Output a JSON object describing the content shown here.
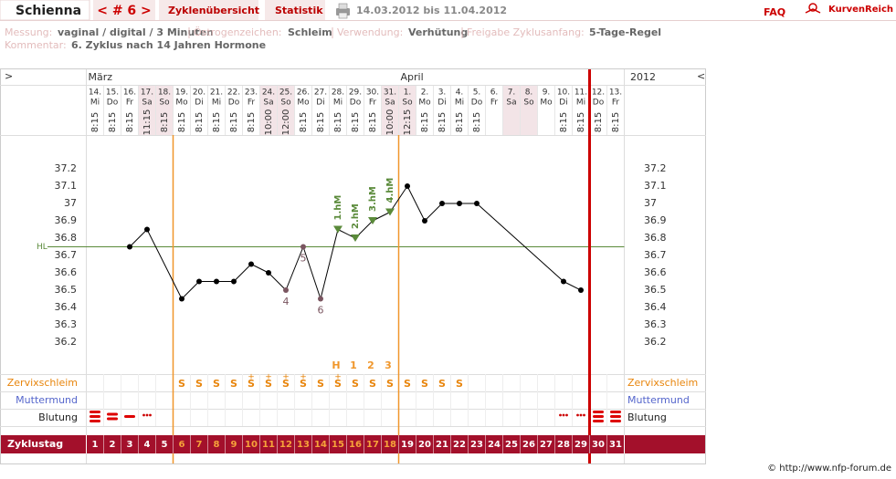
{
  "header": {
    "name": "Schienna",
    "cycle": "< # 6 >",
    "tabs": [
      "Zyklenübersicht",
      "Statistik"
    ],
    "period": "14.03.2012 bis 11.04.2012",
    "faq": "FAQ",
    "logo": "KurvenReich"
  },
  "info": {
    "fields": [
      {
        "label": "Messung:",
        "value": "vaginal / digital / 3 Minuten"
      },
      {
        "label": "Östrogenzeichen:",
        "value": "Schleim"
      },
      {
        "label": "Verwendung:",
        "value": "Verhütung"
      },
      {
        "label": "Freigabe Zyklusanfang:",
        "value": "5-Tage-Regel"
      }
    ],
    "comment": {
      "label": "Kommentar:",
      "value": "6. Zyklus nach 14 Jahren Hormone"
    }
  },
  "chart_data": {
    "type": "line",
    "nav_left": ">",
    "nav_right": "<",
    "year": "2012",
    "months": [
      "März",
      null,
      null,
      null,
      null,
      null,
      null,
      null,
      null,
      null,
      null,
      null,
      null,
      null,
      null,
      null,
      null,
      null,
      "April",
      null,
      null,
      null,
      null,
      null,
      null,
      null,
      null,
      null,
      null,
      null,
      null
    ],
    "dates": [
      "14.",
      "15.",
      "16.",
      "17.",
      "18.",
      "19.",
      "20.",
      "21.",
      "22.",
      "23.",
      "24.",
      "25.",
      "26.",
      "27.",
      "28.",
      "29.",
      "30.",
      "31.",
      "1.",
      "2.",
      "3.",
      "4.",
      "5.",
      "6.",
      "7.",
      "8.",
      "9.",
      "10.",
      "11.",
      "12.",
      "13."
    ],
    "weekdays": [
      "Mi",
      "Do",
      "Fr",
      "Sa",
      "So",
      "Mo",
      "Di",
      "Mi",
      "Do",
      "Fr",
      "Sa",
      "So",
      "Mo",
      "Di",
      "Mi",
      "Do",
      "Fr",
      "Sa",
      "So",
      "Mo",
      "Di",
      "Mi",
      "Do",
      "Fr",
      "Sa",
      "So",
      "Mo",
      "Di",
      "Mi",
      "Do",
      "Fr"
    ],
    "times": [
      "8:15",
      "8:15",
      "8:15",
      "11:15",
      "8:15",
      "8:15",
      "8:15",
      "8:15",
      "8:15",
      "8:15",
      "10:00",
      "12:00",
      "8:15",
      "8:15",
      "8:15",
      "8:15",
      "8:15",
      "10:00",
      "12:15",
      "8:15",
      "8:15",
      "8:15",
      "8:15",
      null,
      null,
      null,
      null,
      "8:15",
      "8:15",
      "8:15",
      "8:15"
    ],
    "x_label": "Zyklustag",
    "categories": [
      "1",
      "2",
      "3",
      "4",
      "5",
      "6",
      "7",
      "8",
      "9",
      "10",
      "11",
      "12",
      "13",
      "14",
      "15",
      "16",
      "17",
      "18",
      "19",
      "20",
      "21",
      "22",
      "23",
      "24",
      "25",
      "26",
      "27",
      "28",
      "29",
      "30",
      "31"
    ],
    "color": "#000000",
    "values": [
      null,
      null,
      36.75,
      36.85,
      null,
      36.45,
      36.55,
      36.55,
      36.55,
      36.65,
      36.6,
      36.5,
      36.75,
      36.45,
      36.85,
      36.8,
      36.9,
      36.95,
      37.1,
      36.9,
      37,
      37,
      37,
      null,
      null,
      null,
      null,
      36.55,
      36.5,
      null,
      null
    ],
    "point_kinds": [
      null,
      null,
      "normal",
      "normal",
      null,
      "normal",
      "normal",
      "normal",
      "normal",
      "normal",
      "normal",
      "excluded",
      "excluded",
      "excluded",
      "high",
      "high",
      "high",
      "high",
      "normal",
      "normal",
      "normal",
      "normal",
      "normal",
      null,
      null,
      null,
      null,
      "normal",
      "normal",
      null,
      null
    ],
    "point_labels": [
      null,
      null,
      null,
      null,
      null,
      null,
      null,
      null,
      null,
      null,
      null,
      "4",
      "5",
      "6",
      "1.hM",
      "2.hM",
      "3.hM",
      "4.hM",
      null,
      null,
      null,
      null,
      null,
      null,
      null,
      null,
      null,
      null,
      null,
      null,
      null
    ],
    "ylim": [
      36.1,
      37.3
    ],
    "yticks": [
      36.2,
      36.3,
      36.4,
      36.5,
      36.6,
      36.7,
      36.8,
      36.9,
      37,
      37.1,
      37.2
    ],
    "hl": {
      "label": "HL",
      "value": 36.75,
      "color": "#5a8a3a"
    },
    "peak_marks": [
      null,
      null,
      null,
      null,
      null,
      null,
      null,
      null,
      null,
      null,
      null,
      null,
      null,
      null,
      "H",
      "1",
      "2",
      "3",
      null,
      null,
      null,
      null,
      null,
      null,
      null,
      null,
      null,
      null,
      null,
      null,
      null
    ],
    "mucus": {
      "label": "Zervixschleim",
      "values": [
        null,
        null,
        null,
        null,
        null,
        "S",
        "S",
        "S",
        "S",
        "S",
        "S",
        "S",
        "S",
        "S",
        "S",
        "S",
        "S",
        "S",
        "S",
        "S",
        "S",
        "S",
        null,
        null,
        null,
        null,
        null,
        null,
        null,
        null,
        null
      ],
      "plus": [
        null,
        null,
        null,
        null,
        null,
        null,
        null,
        null,
        null,
        "+",
        "+",
        "+",
        "+",
        null,
        "+",
        null,
        null,
        null,
        null,
        null,
        null,
        null,
        null,
        null,
        null,
        null,
        null,
        null,
        null,
        null,
        null
      ]
    },
    "cervix": {
      "label": "Muttermund"
    },
    "bleeding": {
      "label": "Blutung",
      "values": [
        "heavy",
        "medium",
        "light",
        "spotting",
        null,
        null,
        null,
        null,
        null,
        null,
        null,
        null,
        null,
        null,
        null,
        null,
        null,
        null,
        null,
        null,
        null,
        null,
        null,
        null,
        null,
        null,
        null,
        "spotting",
        "spotting",
        "heavy",
        "heavy"
      ]
    }
  },
  "footer": "© http://www.nfp-forum.de"
}
